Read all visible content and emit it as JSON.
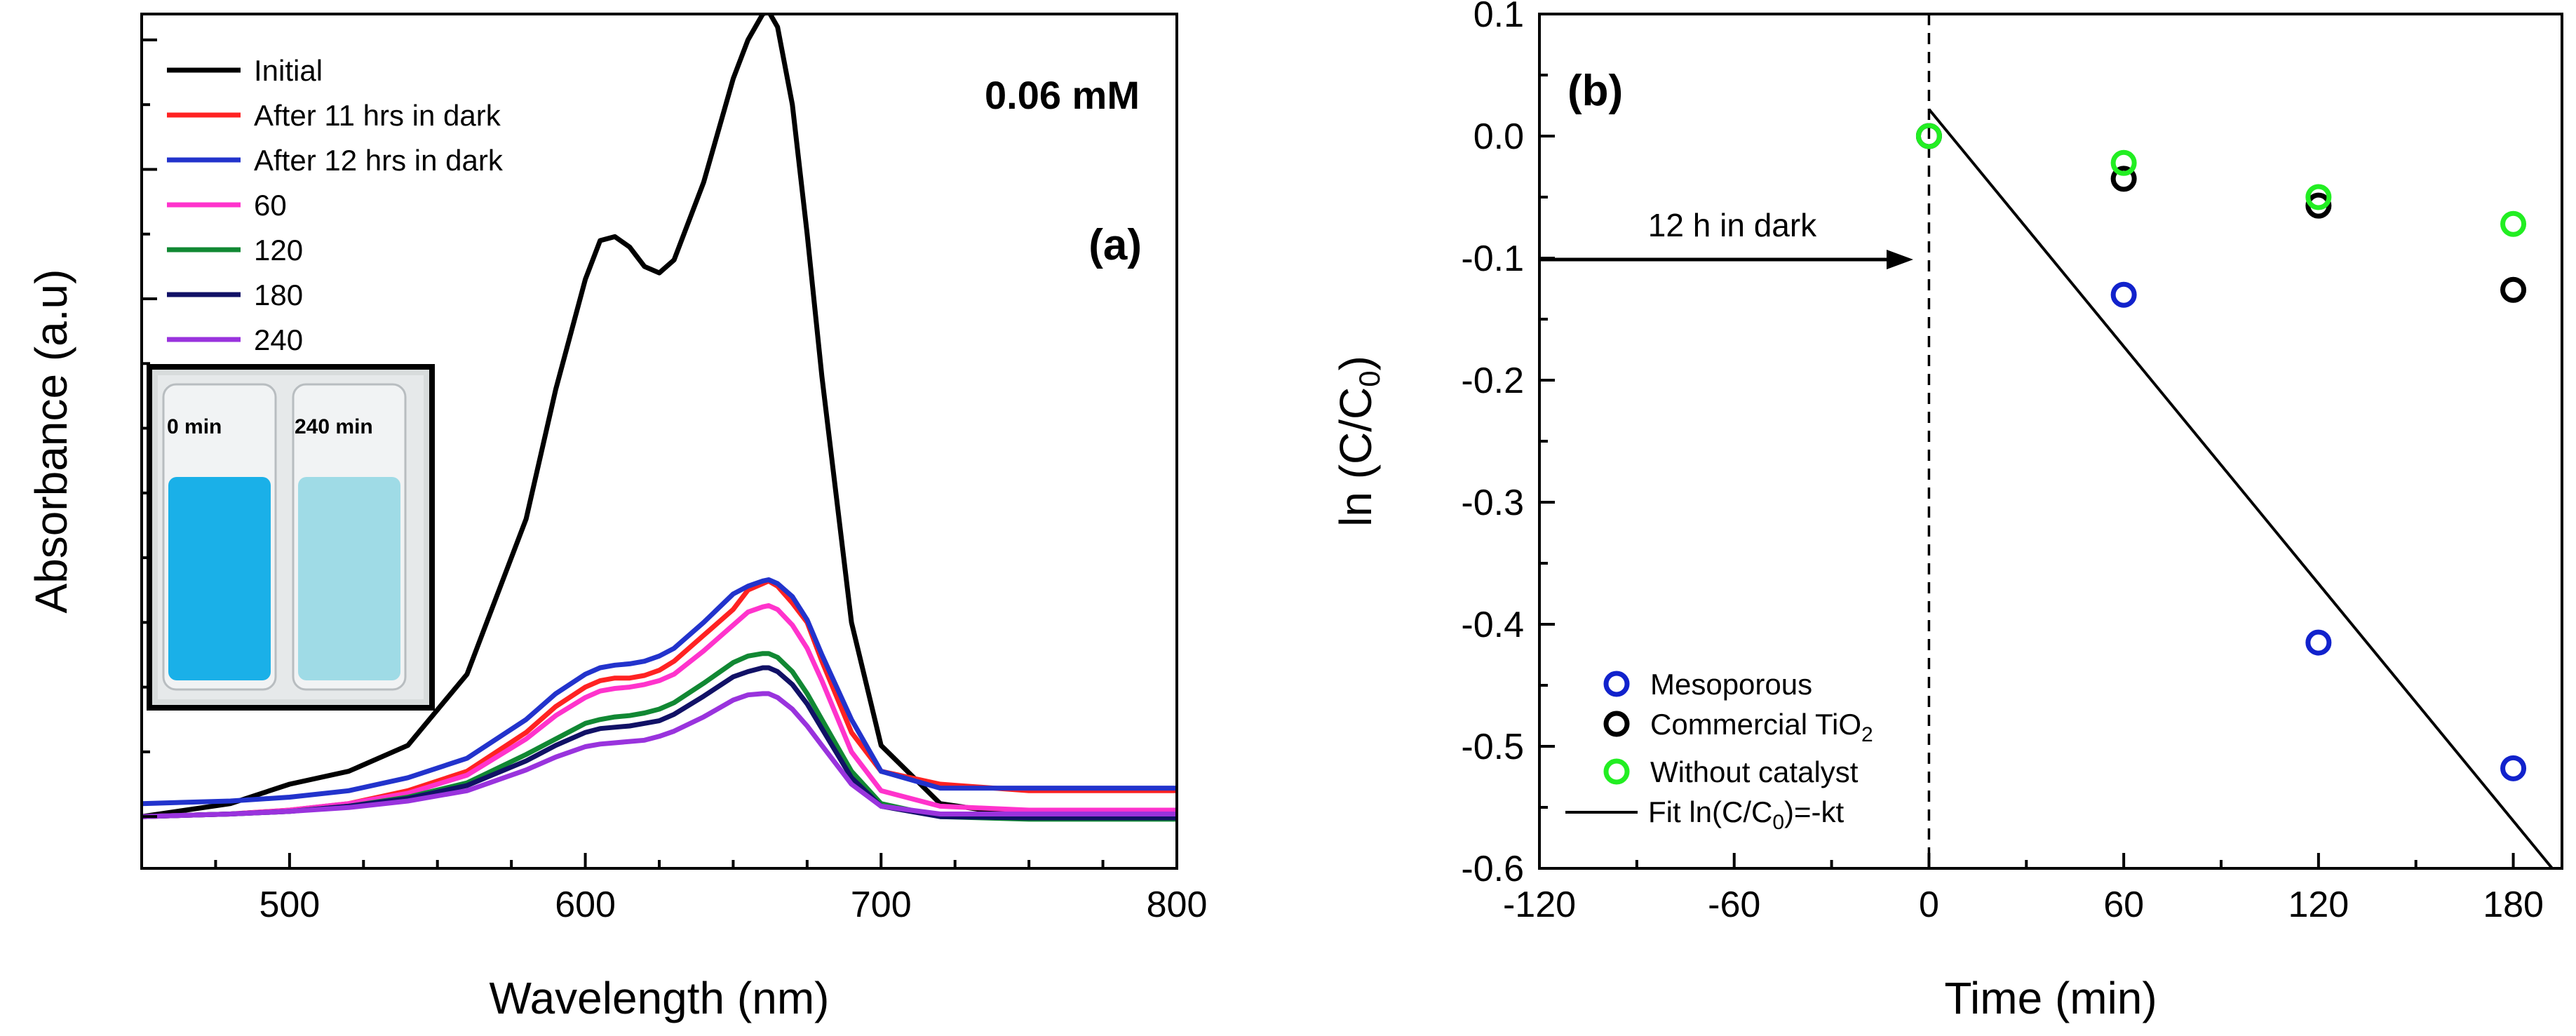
{
  "chart_data": [
    {
      "panel": "(a)",
      "type": "line",
      "concentration_label": "0.06 mM",
      "xlabel": "Wavelength (nm)",
      "ylabel": "Absorbance (a.u)",
      "xlim": [
        450,
        800
      ],
      "ylim": [
        -0.04,
        0.62
      ],
      "xticks": [
        "500",
        "600",
        "700",
        "800"
      ],
      "yticks_unlabeled": [
        0,
        0.1,
        0.2,
        0.3,
        0.4,
        0.5,
        0.6
      ],
      "colors": {
        "Initial": "#000000",
        "After 11 hrs in dark": "#ff2222",
        "After 12 hrs in dark": "#2233cc",
        "60": "#ff33cc",
        "120": "#118833",
        "180": "#111166",
        "240": "#9933dd"
      },
      "x": [
        450,
        480,
        500,
        520,
        540,
        560,
        580,
        590,
        600,
        605,
        610,
        615,
        620,
        625,
        630,
        640,
        650,
        655,
        660,
        662,
        665,
        670,
        675,
        680,
        690,
        700,
        720,
        750,
        800
      ],
      "series": [
        {
          "name": "Initial",
          "values": [
            0.0,
            0.01,
            0.025,
            0.035,
            0.055,
            0.11,
            0.23,
            0.33,
            0.415,
            0.445,
            0.448,
            0.44,
            0.425,
            0.42,
            0.43,
            0.49,
            0.57,
            0.6,
            0.62,
            0.622,
            0.61,
            0.55,
            0.45,
            0.34,
            0.15,
            0.055,
            0.01,
            0.0,
            0.0
          ]
        },
        {
          "name": "After 11 hrs in dark",
          "values": [
            0.0,
            0.002,
            0.005,
            0.01,
            0.02,
            0.035,
            0.065,
            0.085,
            0.1,
            0.105,
            0.107,
            0.107,
            0.109,
            0.113,
            0.12,
            0.14,
            0.16,
            0.175,
            0.18,
            0.182,
            0.178,
            0.165,
            0.15,
            0.12,
            0.065,
            0.035,
            0.025,
            0.02,
            0.02
          ]
        },
        {
          "name": "After 12 hrs in dark",
          "values": [
            0.01,
            0.012,
            0.015,
            0.02,
            0.03,
            0.045,
            0.075,
            0.095,
            0.11,
            0.115,
            0.117,
            0.118,
            0.12,
            0.124,
            0.13,
            0.15,
            0.172,
            0.178,
            0.182,
            0.183,
            0.18,
            0.17,
            0.152,
            0.125,
            0.075,
            0.035,
            0.022,
            0.022,
            0.022
          ]
        },
        {
          "name": "60",
          "values": [
            0.0,
            0.002,
            0.005,
            0.01,
            0.018,
            0.032,
            0.06,
            0.078,
            0.092,
            0.097,
            0.099,
            0.1,
            0.102,
            0.105,
            0.11,
            0.128,
            0.148,
            0.158,
            0.162,
            0.163,
            0.16,
            0.148,
            0.13,
            0.105,
            0.05,
            0.02,
            0.008,
            0.005,
            0.005
          ]
        },
        {
          "name": "120",
          "values": [
            0.0,
            0.002,
            0.004,
            0.008,
            0.015,
            0.026,
            0.048,
            0.06,
            0.072,
            0.075,
            0.077,
            0.078,
            0.08,
            0.083,
            0.088,
            0.103,
            0.119,
            0.124,
            0.126,
            0.126,
            0.123,
            0.112,
            0.095,
            0.075,
            0.035,
            0.01,
            0.0,
            -0.002,
            -0.002
          ]
        },
        {
          "name": "180",
          "values": [
            0.0,
            0.002,
            0.004,
            0.008,
            0.014,
            0.024,
            0.043,
            0.055,
            0.065,
            0.068,
            0.069,
            0.07,
            0.072,
            0.074,
            0.079,
            0.093,
            0.108,
            0.112,
            0.115,
            0.115,
            0.112,
            0.102,
            0.087,
            0.068,
            0.03,
            0.008,
            0.0,
            -0.001,
            -0.001
          ]
        },
        {
          "name": "240",
          "values": [
            0.0,
            0.002,
            0.004,
            0.007,
            0.012,
            0.02,
            0.036,
            0.046,
            0.054,
            0.056,
            0.057,
            0.058,
            0.059,
            0.062,
            0.066,
            0.077,
            0.09,
            0.094,
            0.095,
            0.095,
            0.092,
            0.083,
            0.07,
            0.055,
            0.025,
            0.008,
            0.002,
            0.002,
            0.002
          ]
        }
      ],
      "legend": [
        "Initial",
        "After 11 hrs in dark",
        "After 12 hrs in dark",
        "60",
        "120",
        "180",
        "240"
      ],
      "inset": {
        "labels": [
          "0 min",
          "240 min"
        ],
        "colors": {
          "vial_left": "#1ab0e8",
          "vial_right": "#9fdbe6"
        }
      }
    },
    {
      "panel": "(b)",
      "type": "scatter",
      "xlabel": "Time (min)",
      "ylabel_main": "ln (C/C",
      "ylabel_sub": "0",
      "ylabel_end": ")",
      "xlim": [
        -120,
        195
      ],
      "ylim": [
        -0.6,
        0.1
      ],
      "xticks": [
        -120,
        -60,
        0,
        60,
        120,
        180
      ],
      "xtick_labels": [
        "-120",
        "-60",
        "0",
        "60",
        "120",
        "180"
      ],
      "yticks": [
        0.1,
        0.0,
        -0.1,
        -0.2,
        -0.3,
        -0.4,
        -0.5,
        -0.6
      ],
      "ytick_labels": [
        "0.1",
        "0.0",
        "-0.1",
        "-0.2",
        "-0.3",
        "-0.4",
        "-0.5",
        "-0.6"
      ],
      "series": [
        {
          "name": "Mesoporous",
          "color": "#1122cc",
          "x": [
            0,
            60,
            120,
            180
          ],
          "y": [
            0.0,
            -0.13,
            -0.415,
            -0.518
          ]
        },
        {
          "name": "Commercial TiO2",
          "color": "#000000",
          "x": [
            0,
            60,
            120,
            180
          ],
          "y": [
            0.0,
            -0.035,
            -0.057,
            -0.126
          ]
        },
        {
          "name": "Without catalyst",
          "color": "#22ee22",
          "x": [
            0,
            60,
            120,
            180
          ],
          "y": [
            0.0,
            -0.022,
            -0.05,
            -0.072
          ]
        }
      ],
      "fit_line": {
        "name": "Fit ln(C/C0)=-kt",
        "x": [
          0,
          192
        ],
        "y": [
          0.022,
          -0.6
        ]
      },
      "dark_marker_x": 0,
      "annotation": "12 h in dark",
      "legend_labels": {
        "mesoporous": "Mesoporous",
        "commercial_main": "Commercial TiO",
        "commercial_sub": "2",
        "without": "Without catalyst",
        "fit_main": "Fit ln(C/C",
        "fit_sub": "0",
        "fit_end": ")=-kt"
      }
    }
  ]
}
